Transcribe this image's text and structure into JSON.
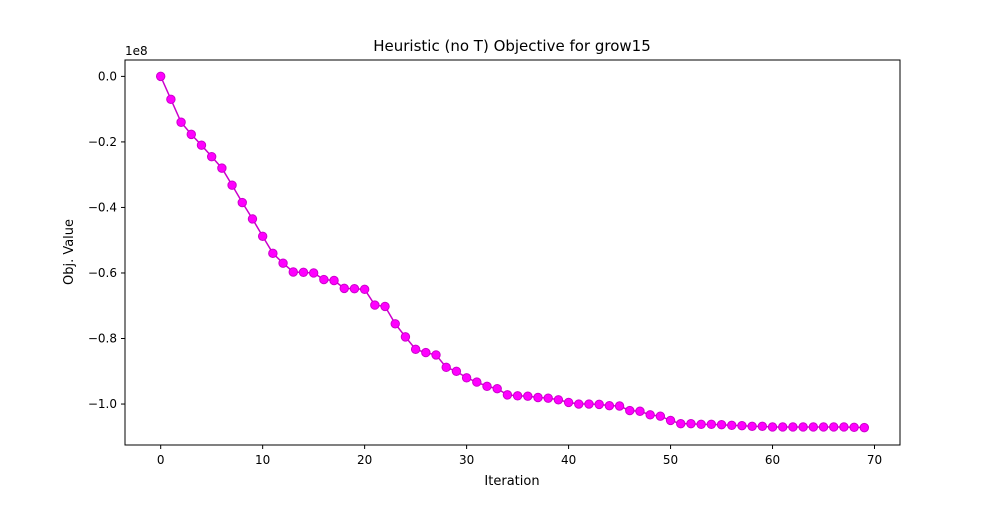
{
  "chart_data": {
    "type": "line",
    "title": "Heuristic (no T) Objective for grow15",
    "xlabel": "Iteration",
    "ylabel": "Obj. Value",
    "offset_label": "1e8",
    "xlim": [
      -3.5,
      72.5
    ],
    "ylim": [
      -1.125,
      0.05
    ],
    "xticks": [
      0,
      10,
      20,
      30,
      40,
      50,
      60,
      70
    ],
    "yticks": [
      0.0,
      -0.2,
      -0.4,
      -0.6,
      -0.8,
      -1.0
    ],
    "ytick_labels": [
      "0.0",
      "−0.2",
      "−0.4",
      "−0.6",
      "−0.8",
      "−1.0"
    ],
    "series": [
      {
        "color": "#cc00cc",
        "marker_color": "#ff00ff",
        "x": [
          0,
          1,
          2,
          3,
          4,
          5,
          6,
          7,
          8,
          9,
          10,
          11,
          12,
          13,
          14,
          15,
          16,
          17,
          18,
          19,
          20,
          21,
          22,
          23,
          24,
          25,
          26,
          27,
          28,
          29,
          30,
          31,
          32,
          33,
          34,
          35,
          36,
          37,
          38,
          39,
          40,
          41,
          42,
          43,
          44,
          45,
          46,
          47,
          48,
          49,
          50,
          51,
          52,
          53,
          54,
          55,
          56,
          57,
          58,
          59,
          60,
          61,
          62,
          63,
          64,
          65,
          66,
          67,
          68,
          69
        ],
        "values": [
          0.0,
          -0.07,
          -0.14,
          -0.177,
          -0.21,
          -0.245,
          -0.28,
          -0.332,
          -0.385,
          -0.435,
          -0.488,
          -0.54,
          -0.57,
          -0.597,
          -0.598,
          -0.6,
          -0.62,
          -0.623,
          -0.647,
          -0.648,
          -0.65,
          -0.698,
          -0.702,
          -0.755,
          -0.795,
          -0.833,
          -0.843,
          -0.85,
          -0.888,
          -0.9,
          -0.92,
          -0.933,
          -0.946,
          -0.953,
          -0.972,
          -0.975,
          -0.976,
          -0.98,
          -0.982,
          -0.987,
          -0.995,
          -1.0,
          -1.0,
          -1.001,
          -1.005,
          -1.006,
          -1.02,
          -1.022,
          -1.033,
          -1.037,
          -1.05,
          -1.06,
          -1.06,
          -1.062,
          -1.062,
          -1.063,
          -1.065,
          -1.066,
          -1.068,
          -1.068,
          -1.07,
          -1.07,
          -1.07,
          -1.07,
          -1.07,
          -1.07,
          -1.07,
          -1.07,
          -1.071,
          -1.072
        ]
      }
    ]
  }
}
